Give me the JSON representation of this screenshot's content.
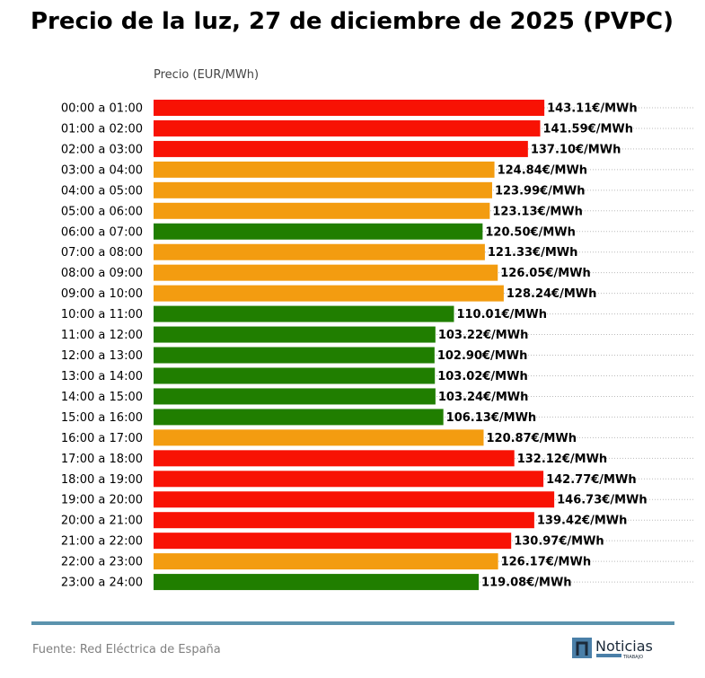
{
  "chart_data": {
    "type": "bar",
    "orientation": "horizontal",
    "title": "Precio de la luz, 27 de diciembre de 2025 (PVPC)",
    "xlabel": "Precio (EUR/MWh)",
    "ylabel": "",
    "xlim": [
      0,
      198
    ],
    "grid": "horizontal dotted",
    "value_suffix": "€/MWh",
    "categories": [
      "00:00 a 01:00",
      "01:00 a 02:00",
      "02:00 a 03:00",
      "03:00 a 04:00",
      "04:00 a 05:00",
      "05:00 a 06:00",
      "06:00 a 07:00",
      "07:00 a 08:00",
      "08:00 a 09:00",
      "09:00 a 10:00",
      "10:00 a 11:00",
      "11:00 a 12:00",
      "12:00 a 13:00",
      "13:00 a 14:00",
      "14:00 a 15:00",
      "15:00 a 16:00",
      "16:00 a 17:00",
      "17:00 a 18:00",
      "18:00 a 19:00",
      "19:00 a 20:00",
      "20:00 a 21:00",
      "21:00 a 22:00",
      "22:00 a 23:00",
      "23:00 a 24:00"
    ],
    "values": [
      143.11,
      141.59,
      137.1,
      124.84,
      123.99,
      123.13,
      120.5,
      121.33,
      126.05,
      128.24,
      110.01,
      103.22,
      102.9,
      103.02,
      103.24,
      106.13,
      120.87,
      132.12,
      142.77,
      146.73,
      139.42,
      130.97,
      126.17,
      119.08
    ],
    "levels": [
      "high",
      "high",
      "high",
      "medium",
      "medium",
      "medium",
      "low",
      "medium",
      "medium",
      "medium",
      "low",
      "low",
      "low",
      "low",
      "low",
      "low",
      "medium",
      "high",
      "high",
      "high",
      "high",
      "high",
      "medium",
      "low"
    ],
    "colors": {
      "high": "#f81204",
      "medium": "#f39c10",
      "low": "#207e00"
    }
  },
  "footer": {
    "source": "Fuente: Red Eléctrica de España",
    "logo_text": "Noticias",
    "logo_subtext": "TRABAJO",
    "rule_color": "#5b93ad"
  }
}
